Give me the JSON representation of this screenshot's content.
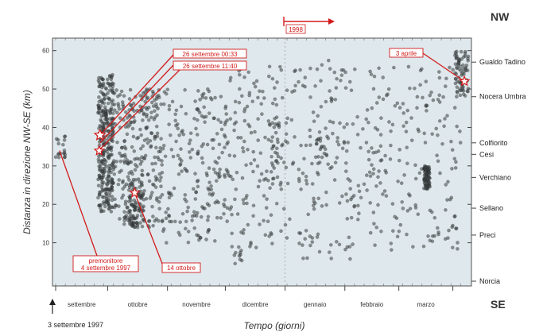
{
  "chart_data": {
    "type": "scatter",
    "xlabel": "Tempo (giorni)",
    "ylabel": "Distanza in direzione NW-SE (km)",
    "ylim": [
      0,
      62
    ],
    "y_ticks": [
      10,
      20,
      30,
      40,
      50,
      60
    ],
    "grid": false,
    "x_months": [
      "settembre",
      "ottobre",
      "novembre",
      "dicembre",
      "gennaio",
      "febbraio",
      "marzo"
    ],
    "x_start_note": "3 settembre 1997",
    "year_marker": "1998",
    "direction_top": "NW",
    "direction_bottom": "SE",
    "towns": [
      {
        "name": "Gualdo Tadino",
        "y": 57
      },
      {
        "name": "Nocera Umbra",
        "y": 48
      },
      {
        "name": "Colfiorito",
        "y": 36
      },
      {
        "name": "Cesi",
        "y": 33
      },
      {
        "name": "Verchiano",
        "y": 27
      },
      {
        "name": "Sellano",
        "y": 19
      },
      {
        "name": "Preci",
        "y": 12
      },
      {
        "name": "Norcia",
        "y": 0
      }
    ],
    "annotations": [
      {
        "id": "foreshock",
        "text": [
          "premonitore",
          "4 settembre 1997"
        ],
        "day": 2,
        "y": 34
      },
      {
        "id": "ev1",
        "text": [
          "26 settembre 00:33"
        ],
        "day": 23,
        "y": 38
      },
      {
        "id": "ev2",
        "text": [
          "26 settembre 11:40"
        ],
        "day": 23,
        "y": 36
      },
      {
        "id": "ev3",
        "text": [
          "14 ottobre"
        ],
        "day": 41,
        "y": 23
      },
      {
        "id": "ev4",
        "text": [
          "3 aprile"
        ],
        "day": 212,
        "y": 52
      }
    ],
    "clusters": [
      {
        "day_min": 0,
        "day_max": 5,
        "y_min": 32,
        "y_max": 38,
        "n": 18
      },
      {
        "day_min": 22,
        "day_max": 30,
        "y_min": 18,
        "y_max": 54,
        "n": 320
      },
      {
        "day_min": 30,
        "day_max": 55,
        "y_min": 14,
        "y_max": 50,
        "n": 280
      },
      {
        "day_min": 38,
        "day_max": 46,
        "y_min": 14,
        "y_max": 26,
        "n": 70
      },
      {
        "day_min": 55,
        "day_max": 90,
        "y_min": 10,
        "y_max": 50,
        "n": 210
      },
      {
        "day_min": 90,
        "day_max": 125,
        "y_min": 8,
        "y_max": 56,
        "n": 150
      },
      {
        "day_min": 125,
        "day_max": 155,
        "y_min": 5,
        "y_max": 58,
        "n": 130
      },
      {
        "day_min": 155,
        "day_max": 185,
        "y_min": 8,
        "y_max": 56,
        "n": 110
      },
      {
        "day_min": 185,
        "day_max": 210,
        "y_min": 8,
        "y_max": 56,
        "n": 90
      },
      {
        "day_min": 191,
        "day_max": 194,
        "y_min": 24,
        "y_max": 30,
        "n": 80
      },
      {
        "day_min": 207,
        "day_max": 214,
        "y_min": 48,
        "y_max": 60,
        "n": 70
      },
      {
        "day_min": 92,
        "day_max": 97,
        "y_min": 4,
        "y_max": 9,
        "n": 10
      },
      {
        "day_min": 110,
        "day_max": 116,
        "y_min": 26,
        "y_max": 42,
        "n": 30
      },
      {
        "day_min": 135,
        "day_max": 142,
        "y_min": 30,
        "y_max": 38,
        "n": 18
      }
    ]
  }
}
